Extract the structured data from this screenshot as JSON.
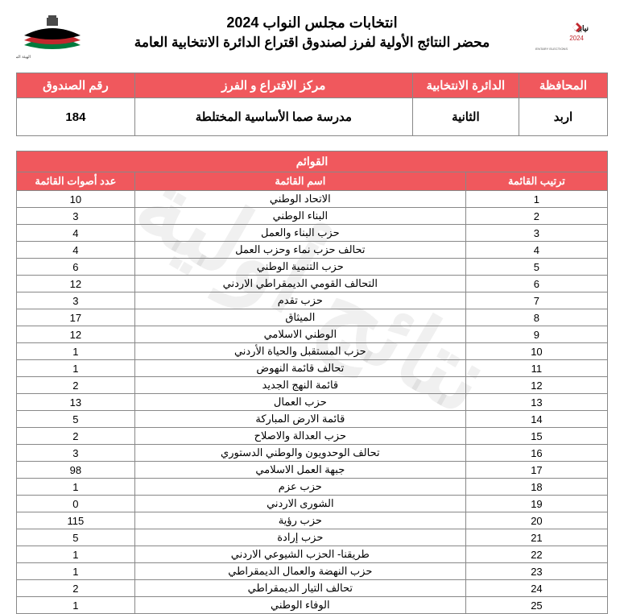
{
  "header": {
    "title1": "انتخابات مجلس النواب 2024",
    "title2": "محضر النتائج الأولية لفرز لصندوق اقتراع الدائرة الانتخابية العامة"
  },
  "info": {
    "headers": {
      "governorate": "المحافظة",
      "district": "الدائرة الانتخابية",
      "center": "مركز الاقتراع و الفرز",
      "box": "رقم الصندوق"
    },
    "values": {
      "governorate": "اربد",
      "district": "الثانية",
      "center": "مدرسة صما الأساسية المختلطة",
      "box": "184"
    }
  },
  "results": {
    "super_header": "القوائم",
    "headers": {
      "order": "ترتيب القائمة",
      "name": "اسم القائمة",
      "votes": "عدد أصوات القائمة"
    },
    "rows": [
      {
        "order": "1",
        "name": "الاتحاد الوطني",
        "votes": "10"
      },
      {
        "order": "2",
        "name": "البناء الوطني",
        "votes": "3"
      },
      {
        "order": "3",
        "name": "حزب البناء والعمل",
        "votes": "4"
      },
      {
        "order": "4",
        "name": "تحالف حزب نماء وحزب العمل",
        "votes": "4"
      },
      {
        "order": "5",
        "name": "حزب التنمية الوطني",
        "votes": "6"
      },
      {
        "order": "6",
        "name": "التحالف القومي الديمقراطي الاردني",
        "votes": "12"
      },
      {
        "order": "7",
        "name": "حزب تقدم",
        "votes": "3"
      },
      {
        "order": "8",
        "name": "الميثاق",
        "votes": "17"
      },
      {
        "order": "9",
        "name": "الوطني الاسلامي",
        "votes": "12"
      },
      {
        "order": "10",
        "name": "حزب المستقبل والحياة الأردني",
        "votes": "1"
      },
      {
        "order": "11",
        "name": "تحالف قائمة النهوض",
        "votes": "1"
      },
      {
        "order": "12",
        "name": "قائمة النهج الجديد",
        "votes": "2"
      },
      {
        "order": "13",
        "name": "حزب العمال",
        "votes": "13"
      },
      {
        "order": "14",
        "name": "قائمة الارض المباركة",
        "votes": "5"
      },
      {
        "order": "15",
        "name": "حزب العدالة والاصلاح",
        "votes": "2"
      },
      {
        "order": "16",
        "name": "تحالف الوحدويون والوطني الدستوري",
        "votes": "3"
      },
      {
        "order": "17",
        "name": "جبهة العمل الاسلامي",
        "votes": "98"
      },
      {
        "order": "18",
        "name": "حزب عزم",
        "votes": "1"
      },
      {
        "order": "19",
        "name": "الشورى الاردني",
        "votes": "0"
      },
      {
        "order": "20",
        "name": "حزب رؤية",
        "votes": "115"
      },
      {
        "order": "21",
        "name": "حزب إرادة",
        "votes": "5"
      },
      {
        "order": "22",
        "name": "طريقنا- الحزب الشيوعي الاردني",
        "votes": "1"
      },
      {
        "order": "23",
        "name": "حزب النهضة والعمال الديمقراطي",
        "votes": "1"
      },
      {
        "order": "24",
        "name": "تحالف التيار الديمقراطي",
        "votes": "2"
      },
      {
        "order": "25",
        "name": "الوفاء الوطني",
        "votes": "1"
      }
    ]
  },
  "watermark_text": "نتائج أولية",
  "colors": {
    "header_bg": "#f0585d",
    "header_fg": "#ffffff",
    "border": "#888888",
    "accent_red": "#c1272d",
    "accent_green": "#007a3d",
    "accent_black": "#000000"
  }
}
